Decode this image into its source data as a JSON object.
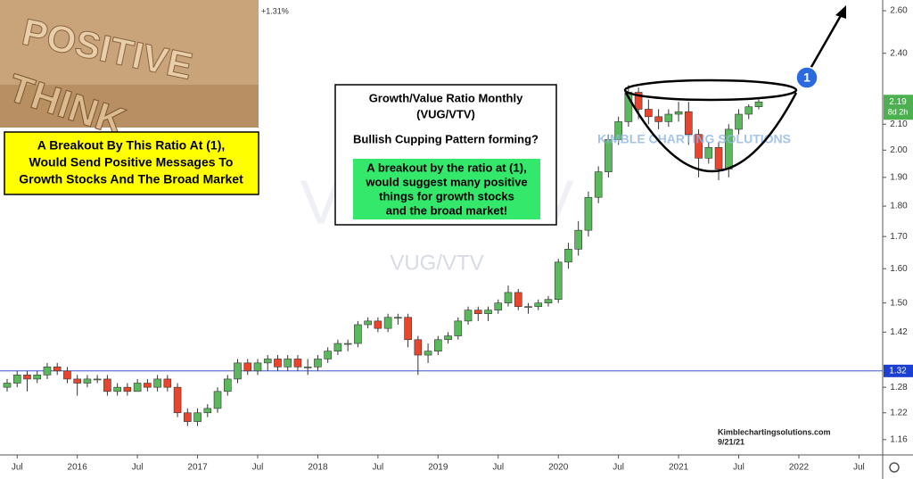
{
  "chart_data": {
    "type": "candlestick",
    "title": "Growth/Value Ratio Monthly",
    "subtitle": "(VUG/VTV)",
    "question": "Bullish Cupping Pattern forming?",
    "green_note": [
      "A breakout by the ratio at (1),",
      "would suggest many positive",
      "things for growth stocks",
      "and the broad market!"
    ],
    "yellow_note": [
      "A Breakout By This Ratio At (1),",
      "Would Send Positive Messages To",
      "Growth Stocks And The Broad Market"
    ],
    "photo_words": [
      "POSITIVE",
      "THINK"
    ],
    "change_label": "+1.31%",
    "watermark": "VUG/VTV",
    "logo": "KIMBLE CHARTING SOLUTIONS",
    "credit": "Kimblechartingsolutions.com",
    "date": "9/21/21",
    "marker": "1",
    "x": [
      "2015-06",
      "2015-07",
      "2015-08",
      "2015-09",
      "2015-10",
      "2015-11",
      "2015-12",
      "2016-01",
      "2016-02",
      "2016-03",
      "2016-04",
      "2016-05",
      "2016-06",
      "2016-07",
      "2016-08",
      "2016-09",
      "2016-10",
      "2016-11",
      "2016-12",
      "2017-01",
      "2017-02",
      "2017-03",
      "2017-04",
      "2017-05",
      "2017-06",
      "2017-07",
      "2017-08",
      "2017-09",
      "2017-10",
      "2017-11",
      "2017-12",
      "2018-01",
      "2018-02",
      "2018-03",
      "2018-04",
      "2018-05",
      "2018-06",
      "2018-07",
      "2018-08",
      "2018-09",
      "2018-10",
      "2018-11",
      "2018-12",
      "2019-01",
      "2019-02",
      "2019-03",
      "2019-04",
      "2019-05",
      "2019-06",
      "2019-07",
      "2019-08",
      "2019-09",
      "2019-10",
      "2019-11",
      "2019-12",
      "2020-01",
      "2020-02",
      "2020-03",
      "2020-04",
      "2020-05",
      "2020-06",
      "2020-07",
      "2020-08",
      "2020-09",
      "2020-10",
      "2020-11",
      "2020-12",
      "2021-01",
      "2021-02",
      "2021-03",
      "2021-04",
      "2021-05",
      "2021-06",
      "2021-07",
      "2021-08",
      "2021-09"
    ],
    "open": [
      1.28,
      1.29,
      1.31,
      1.3,
      1.31,
      1.33,
      1.32,
      1.3,
      1.29,
      1.3,
      1.3,
      1.27,
      1.28,
      1.27,
      1.29,
      1.28,
      1.3,
      1.28,
      1.22,
      1.2,
      1.22,
      1.23,
      1.27,
      1.3,
      1.34,
      1.32,
      1.34,
      1.35,
      1.33,
      1.35,
      1.33,
      1.33,
      1.35,
      1.37,
      1.39,
      1.39,
      1.44,
      1.45,
      1.43,
      1.46,
      1.46,
      1.4,
      1.36,
      1.37,
      1.4,
      1.41,
      1.45,
      1.48,
      1.47,
      1.48,
      1.5,
      1.53,
      1.49,
      1.49,
      1.5,
      1.51,
      1.62,
      1.66,
      1.72,
      1.83,
      1.92,
      2.04,
      2.11,
      2.23,
      2.16,
      2.13,
      2.11,
      2.14,
      2.15,
      2.06,
      1.97,
      2.01,
      1.93,
      2.08,
      2.14,
      2.17
    ],
    "high": [
      1.3,
      1.32,
      1.32,
      1.32,
      1.34,
      1.34,
      1.33,
      1.31,
      1.31,
      1.31,
      1.31,
      1.29,
      1.29,
      1.3,
      1.3,
      1.31,
      1.31,
      1.29,
      1.23,
      1.23,
      1.24,
      1.28,
      1.31,
      1.35,
      1.35,
      1.35,
      1.36,
      1.36,
      1.36,
      1.36,
      1.35,
      1.36,
      1.38,
      1.4,
      1.4,
      1.45,
      1.46,
      1.46,
      1.47,
      1.47,
      1.47,
      1.41,
      1.39,
      1.41,
      1.42,
      1.46,
      1.49,
      1.49,
      1.49,
      1.51,
      1.55,
      1.54,
      1.5,
      1.51,
      1.52,
      1.63,
      1.68,
      1.75,
      1.85,
      1.94,
      2.06,
      2.13,
      2.26,
      2.25,
      2.2,
      2.16,
      2.16,
      2.19,
      2.19,
      2.08,
      2.03,
      2.03,
      2.1,
      2.16,
      2.18,
      2.2
    ],
    "low": [
      1.27,
      1.28,
      1.27,
      1.29,
      1.3,
      1.31,
      1.29,
      1.26,
      1.28,
      1.29,
      1.26,
      1.26,
      1.26,
      1.27,
      1.27,
      1.27,
      1.27,
      1.21,
      1.19,
      1.19,
      1.21,
      1.22,
      1.26,
      1.29,
      1.31,
      1.31,
      1.32,
      1.32,
      1.32,
      1.32,
      1.31,
      1.32,
      1.34,
      1.36,
      1.37,
      1.38,
      1.43,
      1.42,
      1.42,
      1.44,
      1.38,
      1.31,
      1.34,
      1.36,
      1.39,
      1.4,
      1.44,
      1.45,
      1.45,
      1.47,
      1.49,
      1.48,
      1.47,
      1.48,
      1.49,
      1.5,
      1.6,
      1.64,
      1.7,
      1.81,
      1.9,
      2.02,
      2.09,
      2.12,
      2.1,
      2.08,
      2.09,
      2.11,
      2.02,
      1.9,
      1.95,
      1.89,
      1.9,
      2.06,
      2.12,
      2.16
    ],
    "close": [
      1.29,
      1.31,
      1.3,
      1.31,
      1.33,
      1.32,
      1.3,
      1.29,
      1.3,
      1.3,
      1.27,
      1.28,
      1.27,
      1.29,
      1.28,
      1.3,
      1.28,
      1.22,
      1.2,
      1.22,
      1.23,
      1.27,
      1.3,
      1.34,
      1.32,
      1.34,
      1.35,
      1.33,
      1.35,
      1.33,
      1.33,
      1.35,
      1.37,
      1.39,
      1.39,
      1.44,
      1.45,
      1.43,
      1.46,
      1.46,
      1.4,
      1.36,
      1.37,
      1.4,
      1.41,
      1.45,
      1.48,
      1.47,
      1.48,
      1.5,
      1.53,
      1.49,
      1.49,
      1.5,
      1.51,
      1.62,
      1.66,
      1.72,
      1.83,
      1.92,
      2.04,
      2.11,
      2.23,
      2.16,
      2.13,
      2.11,
      2.14,
      2.15,
      2.06,
      1.97,
      2.01,
      1.93,
      2.08,
      2.14,
      2.17,
      2.19
    ],
    "up_color": "#5cb85c",
    "down_color": "#e8452c",
    "log_scale": true,
    "ylim": [
      1.127,
      2.653
    ],
    "yticks": [
      1.16,
      1.22,
      1.28,
      1.42,
      {
        "value": 1.5,
        "label": "1.50"
      },
      {
        "value": 1.6,
        "label": "1.60"
      },
      {
        "value": 1.7,
        "label": "1.70"
      },
      {
        "value": 1.8,
        "label": "1.80"
      },
      {
        "value": 1.9,
        "label": "1.90"
      },
      {
        "value": 2.0,
        "label": "2.00"
      },
      {
        "value": 2.1,
        "label": "2.10"
      },
      {
        "value": 2.4,
        "label": "2.40"
      },
      {
        "value": 2.6,
        "label": "2.60"
      }
    ],
    "xticks": [
      {
        "value": "2015-07",
        "label": "Jul"
      },
      {
        "value": "2016-01",
        "label": "2016"
      },
      {
        "value": "2016-07",
        "label": "Jul"
      },
      {
        "value": "2017-01",
        "label": "2017"
      },
      {
        "value": "2017-07",
        "label": "Jul"
      },
      {
        "value": "2018-01",
        "label": "2018"
      },
      {
        "value": "2018-07",
        "label": "Jul"
      },
      {
        "value": "2019-01",
        "label": "2019"
      },
      {
        "value": "2019-07",
        "label": "Jul"
      },
      {
        "value": "2020-01",
        "label": "2020"
      },
      {
        "value": "2020-07",
        "label": "Jul"
      },
      {
        "value": "2021-01",
        "label": "2021"
      },
      {
        "value": "2021-07",
        "label": "Jul"
      },
      {
        "value": "2022-01",
        "label": "2022"
      },
      {
        "value": "2022-07",
        "label": "Jul"
      }
    ],
    "level_line": {
      "value": 1.32,
      "label": "1.32",
      "color": "#1a3fd1"
    },
    "last_price": {
      "value": 2.19,
      "countdown": "8d 2h",
      "color": "#4caf50"
    },
    "grid": false
  }
}
